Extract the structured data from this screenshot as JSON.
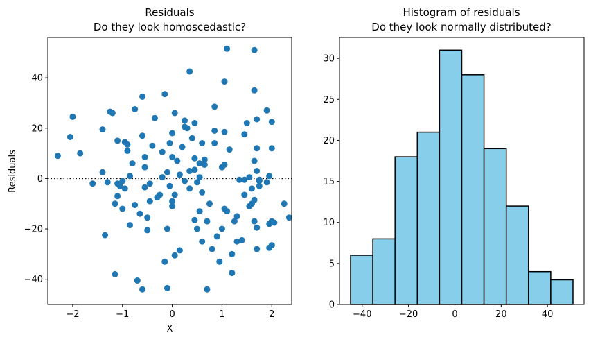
{
  "chart_data": [
    {
      "type": "scatter",
      "title": "Residuals",
      "subtitle": "Do they look homoscedastic?",
      "xlabel": "X",
      "ylabel": "Residuals",
      "xlim": [
        -2.5,
        2.4
      ],
      "ylim": [
        -50,
        56
      ],
      "xticks": [
        -2,
        -1,
        0,
        1,
        2
      ],
      "yticks": [
        -40,
        -20,
        0,
        20,
        40
      ],
      "xtick_labels": [
        "−2",
        "−1",
        "0",
        "1",
        "2"
      ],
      "ytick_labels": [
        "−40",
        "−20",
        "0",
        "20",
        "40"
      ],
      "reference_line": {
        "y": 0,
        "style": "dotted"
      },
      "color": "#1f77b4",
      "points": [
        [
          -2.3,
          9
        ],
        [
          -2.05,
          16.5
        ],
        [
          -2.0,
          24.5
        ],
        [
          -1.85,
          10
        ],
        [
          -1.6,
          -2
        ],
        [
          -1.4,
          2.5
        ],
        [
          -1.4,
          19.5
        ],
        [
          -1.35,
          -22.5
        ],
        [
          -1.3,
          -1.5
        ],
        [
          -1.25,
          26.5
        ],
        [
          -1.2,
          26
        ],
        [
          -1.15,
          -38
        ],
        [
          -1.15,
          -10
        ],
        [
          -1.1,
          -7
        ],
        [
          -1.1,
          -2
        ],
        [
          -1.1,
          15
        ],
        [
          -1.05,
          -3
        ],
        [
          -1.0,
          -1
        ],
        [
          -1.0,
          -12
        ],
        [
          -0.95,
          -4
        ],
        [
          -0.95,
          14.5
        ],
        [
          -0.9,
          13.5
        ],
        [
          -0.9,
          11
        ],
        [
          -0.85,
          1
        ],
        [
          -0.85,
          -18.5
        ],
        [
          -0.8,
          6
        ],
        [
          -0.75,
          -10.5
        ],
        [
          -0.75,
          27.5
        ],
        [
          -0.7,
          -40.5
        ],
        [
          -0.65,
          -14
        ],
        [
          -0.6,
          17
        ],
        [
          -0.6,
          32.5
        ],
        [
          -0.6,
          -44
        ],
        [
          -0.55,
          -3.5
        ],
        [
          -0.55,
          8.5
        ],
        [
          -0.55,
          4.5
        ],
        [
          -0.5,
          -20.5
        ],
        [
          -0.5,
          -15.5
        ],
        [
          -0.45,
          -9
        ],
        [
          -0.45,
          -2
        ],
        [
          -0.4,
          13
        ],
        [
          -0.35,
          24
        ],
        [
          -0.3,
          -7.5
        ],
        [
          -0.25,
          -6.5
        ],
        [
          -0.2,
          0.5
        ],
        [
          -0.2,
          10.5
        ],
        [
          -0.15,
          33.5
        ],
        [
          -0.15,
          -33
        ],
        [
          -0.1,
          -43.5
        ],
        [
          -0.1,
          -20
        ],
        [
          -0.1,
          2.5
        ],
        [
          -0.05,
          14
        ],
        [
          -0.05,
          -3
        ],
        [
          0.0,
          -9
        ],
        [
          0.0,
          -11
        ],
        [
          0.0,
          8.5
        ],
        [
          0.0,
          18
        ],
        [
          0.05,
          26
        ],
        [
          0.05,
          -6.5
        ],
        [
          0.05,
          -30.5
        ],
        [
          0.1,
          7
        ],
        [
          0.15,
          -28.5
        ],
        [
          0.15,
          1.5
        ],
        [
          0.2,
          12.5
        ],
        [
          0.25,
          23
        ],
        [
          0.25,
          -1
        ],
        [
          0.25,
          20.5
        ],
        [
          0.3,
          20
        ],
        [
          0.35,
          42.5
        ],
        [
          0.35,
          3
        ],
        [
          0.35,
          -4
        ],
        [
          0.4,
          16
        ],
        [
          0.45,
          22
        ],
        [
          0.45,
          8
        ],
        [
          0.45,
          -16.5
        ],
        [
          0.45,
          3.5
        ],
        [
          0.5,
          -1.5
        ],
        [
          0.5,
          -20
        ],
        [
          0.55,
          -13
        ],
        [
          0.55,
          6
        ],
        [
          0.55,
          0.5
        ],
        [
          0.6,
          -25
        ],
        [
          0.6,
          -5.5
        ],
        [
          0.6,
          14
        ],
        [
          0.65,
          7.5
        ],
        [
          0.65,
          5.5
        ],
        [
          0.7,
          -44
        ],
        [
          0.7,
          -17
        ],
        [
          0.75,
          -10
        ],
        [
          0.8,
          -28
        ],
        [
          0.85,
          19
        ],
        [
          0.85,
          14
        ],
        [
          0.85,
          28.5
        ],
        [
          0.9,
          -23
        ],
        [
          0.95,
          -33
        ],
        [
          1.0,
          -20
        ],
        [
          1.0,
          4.5
        ],
        [
          1.05,
          5.5
        ],
        [
          1.05,
          -12
        ],
        [
          1.05,
          18.5
        ],
        [
          1.05,
          38.5
        ],
        [
          1.1,
          -13
        ],
        [
          1.1,
          51.5
        ],
        [
          1.15,
          11.5
        ],
        [
          1.2,
          -37.5
        ],
        [
          1.2,
          -30
        ],
        [
          1.25,
          -17
        ],
        [
          1.3,
          -25
        ],
        [
          1.3,
          -15
        ],
        [
          1.35,
          -0.5
        ],
        [
          1.4,
          -24.5
        ],
        [
          1.45,
          17.5
        ],
        [
          1.45,
          -6.5
        ],
        [
          1.45,
          -0.5
        ],
        [
          1.5,
          22
        ],
        [
          1.55,
          0.5
        ],
        [
          1.55,
          -11
        ],
        [
          1.6,
          -4
        ],
        [
          1.6,
          -10
        ],
        [
          1.65,
          -8.5
        ],
        [
          1.65,
          -17
        ],
        [
          1.65,
          35
        ],
        [
          1.7,
          3
        ],
        [
          1.7,
          -19.5
        ],
        [
          1.75,
          -3
        ],
        [
          1.75,
          -0.5
        ],
        [
          1.7,
          12
        ],
        [
          1.7,
          -28
        ],
        [
          1.75,
          -1
        ],
        [
          1.9,
          -1.5
        ],
        [
          1.95,
          1
        ],
        [
          1.95,
          -18
        ],
        [
          1.9,
          27
        ],
        [
          1.95,
          -27.5
        ],
        [
          2.0,
          -26.5
        ],
        [
          2.0,
          22.5
        ],
        [
          2.0,
          -17
        ],
        [
          2.05,
          -17.5
        ],
        [
          2.25,
          -10
        ],
        [
          2.35,
          -15.5
        ],
        [
          1.65,
          7
        ],
        [
          1.7,
          23.5
        ],
        [
          1.65,
          51
        ],
        [
          2.0,
          12
        ]
      ]
    },
    {
      "type": "bar",
      "title": "Histogram of residuals",
      "subtitle": "Do they look normally distributed?",
      "xlabel": "",
      "ylabel": "",
      "bin_edges": [
        -45,
        -35.4,
        -25.8,
        -16.2,
        -6.6,
        3,
        12.6,
        22.2,
        31.8,
        41.4,
        51
      ],
      "values": [
        6,
        8,
        18,
        21,
        31,
        28,
        19,
        12,
        4,
        3
      ],
      "xlim": [
        -49.8,
        55.8
      ],
      "ylim": [
        0,
        32.55
      ],
      "xticks": [
        -40,
        -20,
        0,
        20,
        40
      ],
      "yticks": [
        0,
        5,
        10,
        15,
        20,
        25,
        30
      ],
      "xtick_labels": [
        "−40",
        "−20",
        "0",
        "20",
        "40"
      ],
      "ytick_labels": [
        "0",
        "5",
        "10",
        "15",
        "20",
        "25",
        "30"
      ],
      "color": "#87ceeb",
      "edgecolor": "#000000"
    }
  ]
}
